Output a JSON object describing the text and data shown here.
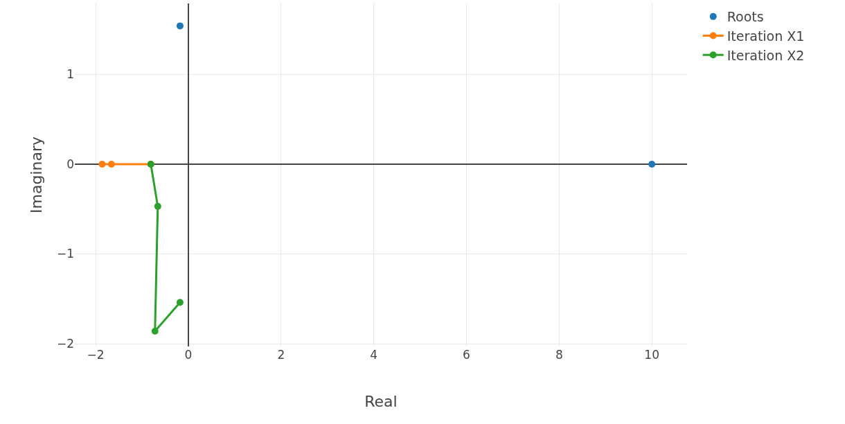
{
  "chart_data": {
    "type": "line",
    "xlabel": "Real",
    "ylabel": "Imaginary",
    "xlim": [
      -2.45,
      10.76
    ],
    "ylim": [
      -2.03,
      1.79
    ],
    "xticks": [
      {
        "value": -2,
        "label": "−2"
      },
      0,
      2,
      4,
      6,
      8,
      10
    ],
    "yticks": [
      {
        "value": -2,
        "label": "−2"
      },
      {
        "value": -1,
        "label": "−1"
      },
      0,
      1
    ],
    "grid": true,
    "legend": "top right",
    "marker": "circle",
    "series": [
      {
        "name": "Roots",
        "type": "scatter",
        "color": "#1f77b4",
        "x": [
          -0.18,
          10
        ],
        "values": [
          1.54,
          0
        ]
      },
      {
        "name": "Iteration X1",
        "color": "#ff7f0e",
        "x": [
          -1.86,
          -1.66,
          -0.81
        ],
        "values": [
          0,
          0,
          0
        ]
      },
      {
        "name": "Iteration X2",
        "color": "#2ca02c",
        "x": [
          -0.81,
          -0.66,
          -0.72,
          -0.18
        ],
        "values": [
          0,
          -0.47,
          -1.86,
          -1.54
        ]
      }
    ]
  }
}
